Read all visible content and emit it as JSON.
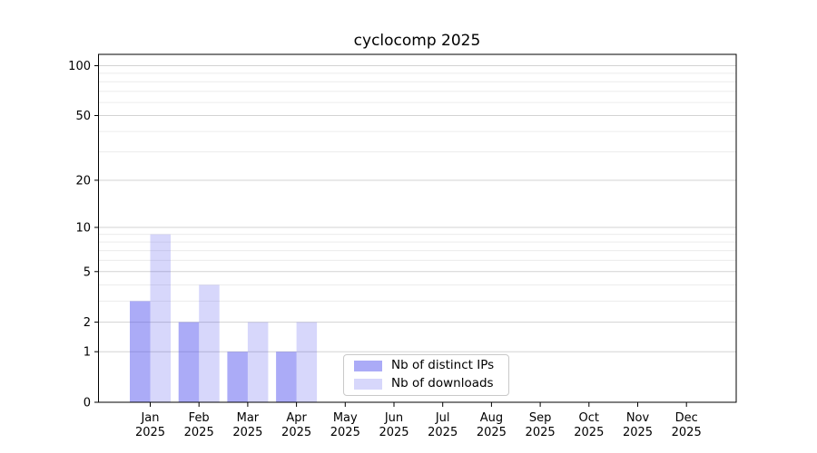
{
  "chart_data": {
    "type": "bar",
    "title": "cyclocomp 2025",
    "x_months": [
      "Jan",
      "Feb",
      "Mar",
      "Apr",
      "May",
      "Jun",
      "Jul",
      "Aug",
      "Sep",
      "Oct",
      "Nov",
      "Dec"
    ],
    "x_year": "2025",
    "categories": [
      "Jan 2025",
      "Feb 2025",
      "Mar 2025",
      "Apr 2025",
      "May 2025",
      "Jun 2025",
      "Jul 2025",
      "Aug 2025",
      "Sep 2025",
      "Oct 2025",
      "Nov 2025",
      "Dec 2025"
    ],
    "series": [
      {
        "name": "Nb of distinct IPs",
        "fill": "rgba(68,68,238,0.45)",
        "hex_on_white": "#ababf6",
        "values": [
          3,
          2,
          1,
          1,
          0,
          0,
          0,
          0,
          0,
          0,
          0,
          0
        ]
      },
      {
        "name": "Nb of downloads",
        "fill": "rgba(68,68,238,0.21)",
        "hex_on_white": "#d9d9f9",
        "values": [
          9,
          4,
          2,
          2,
          0,
          0,
          0,
          0,
          0,
          0,
          0,
          0
        ]
      }
    ],
    "yscale": "log1p",
    "ylim": [
      0,
      117
    ],
    "yticks_major": [
      0,
      1,
      2,
      5,
      10,
      20,
      50,
      100
    ],
    "yticks_minor": [
      3,
      4,
      6,
      7,
      8,
      9,
      30,
      40,
      60,
      70,
      80,
      90
    ],
    "grid": true,
    "legend_position": "inside-bottom-center",
    "colors": {
      "grid_major": "#d3d3d3",
      "grid_minor": "#ececec",
      "axis": "#000000",
      "text": "#000000",
      "background": "#ffffff"
    }
  }
}
